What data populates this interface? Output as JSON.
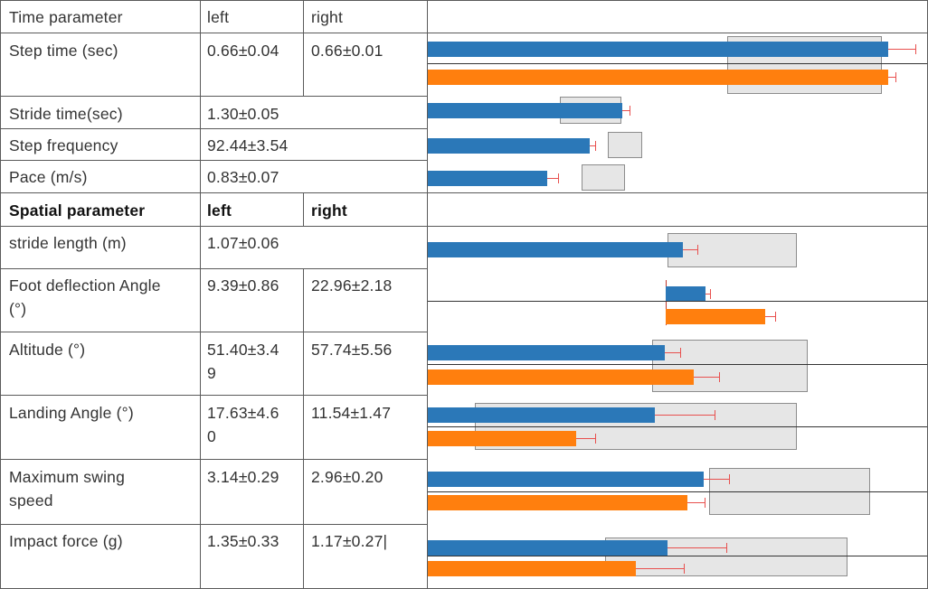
{
  "colors": {
    "left_bar": "#2b78b8",
    "right_bar": "#ff7f0e",
    "error_bar": "#e8504e",
    "range_box": "#e6e6e6"
  },
  "header": {
    "time_parameter": "Time parameter",
    "left": "left",
    "right": "right"
  },
  "spatial_header": {
    "spatial_parameter": "Spatial parameter",
    "left": "left",
    "right": "right"
  },
  "rows": [
    {
      "label": "Step time (sec)",
      "left": "0.66±0.04",
      "right": "0.66±0.01",
      "bars": {
        "left": {
          "value": 0.922,
          "err": 0.055
        },
        "right": {
          "value": 0.922,
          "err": 0.014
        },
        "range": [
          0.6,
          0.91
        ]
      }
    },
    {
      "label": "Stride time(sec)",
      "left": "1.30±0.05",
      "right": "",
      "bars": {
        "left": {
          "value": 0.389,
          "err": 0.015
        },
        "range": [
          0.265,
          0.387
        ]
      }
    },
    {
      "label": "Step frequency",
      "left": "92.44±3.54",
      "right": "",
      "bars": {
        "left": {
          "value": 0.324,
          "err": 0.012
        },
        "range": [
          0.36,
          0.43
        ]
      }
    },
    {
      "label": "Pace (m/s)",
      "left": "0.83±0.07",
      "right": "",
      "bars": {
        "left": {
          "value": 0.24,
          "err": 0.02
        },
        "range": [
          0.308,
          0.395
        ]
      }
    },
    {
      "label": "stride length (m)",
      "left": "1.07±0.06",
      "right": "",
      "bars": {
        "left": {
          "value": 0.51,
          "err": 0.03
        },
        "range": [
          0.48,
          0.74
        ]
      }
    },
    {
      "label": "Foot deflection Angle (°)",
      "left": "9.39±0.86",
      "right": "22.96±2.18",
      "bars": {
        "left": {
          "value": 0.081,
          "err": 0.0075
        },
        "right": {
          "value": 0.2,
          "err": 0.019
        },
        "origin": 0.476
      }
    },
    {
      "label": "Altitude (°)",
      "left": "51.40±3.4\n9",
      "right": "57.74±5.56",
      "bars": {
        "left": {
          "value": 0.474,
          "err": 0.032
        },
        "right": {
          "value": 0.532,
          "err": 0.051
        },
        "range": [
          0.45,
          0.76
        ]
      }
    },
    {
      "label": "Landing Angle (°)",
      "left": "17.63±4.6\n0",
      "right": "11.54±1.47",
      "bars": {
        "left": {
          "value": 0.455,
          "err": 0.12
        },
        "right": {
          "value": 0.298,
          "err": 0.038
        },
        "range": [
          0.095,
          0.74
        ]
      }
    },
    {
      "label": "Maximum swing\nspeed",
      "left": "3.14±0.29",
      "right": "2.96±0.20",
      "bars": {
        "left": {
          "value": 0.552,
          "err": 0.051
        },
        "right": {
          "value": 0.52,
          "err": 0.035
        },
        "range": [
          0.564,
          0.886
        ]
      }
    },
    {
      "label": "Impact force (g)",
      "left": "1.35±0.33",
      "right": "1.17±0.27|",
      "bars": {
        "left": {
          "value": 0.48,
          "err": 0.117
        },
        "right": {
          "value": 0.416,
          "err": 0.096
        },
        "range": [
          0.355,
          0.84
        ]
      }
    }
  ]
}
